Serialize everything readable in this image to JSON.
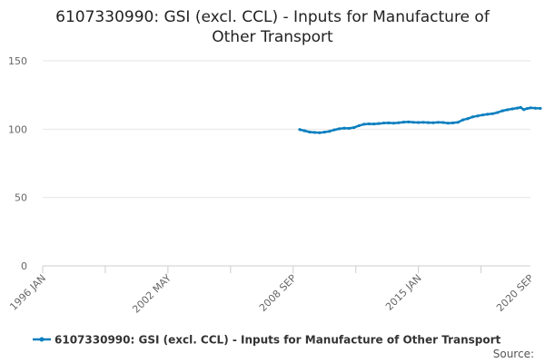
{
  "chart_data": {
    "type": "line",
    "title": "6107330990: GSI (excl. CCL) - Inputs for Manufacture of Other Transport",
    "xlabel": "",
    "ylabel": "",
    "x_tick_labels": [
      "1996 JAN",
      "2002 MAY",
      "2008 SEP",
      "2015 JAN",
      "2020 SEP"
    ],
    "ylim": [
      0,
      150
    ],
    "y_ticks": [
      0,
      50,
      100,
      150
    ],
    "grid": true,
    "legend_position": "bottom",
    "source_label": "Source:",
    "series": [
      {
        "name": "6107330990: GSI (excl. CCL) - Inputs for Manufacture of Other Transport",
        "color": "#0b7fbf",
        "points": [
          [
            "2009-01",
            99.7
          ],
          [
            "2009-04",
            98.8
          ],
          [
            "2009-07",
            97.9
          ],
          [
            "2009-10",
            97.6
          ],
          [
            "2010-01",
            97.4
          ],
          [
            "2010-04",
            97.8
          ],
          [
            "2010-07",
            98.4
          ],
          [
            "2010-10",
            99.5
          ],
          [
            "2011-01",
            100.3
          ],
          [
            "2011-04",
            100.7
          ],
          [
            "2011-07",
            100.6
          ],
          [
            "2011-10",
            101.2
          ],
          [
            "2012-01",
            102.6
          ],
          [
            "2012-04",
            103.6
          ],
          [
            "2012-07",
            103.9
          ],
          [
            "2012-10",
            103.8
          ],
          [
            "2013-01",
            104.1
          ],
          [
            "2013-04",
            104.5
          ],
          [
            "2013-07",
            104.6
          ],
          [
            "2013-10",
            104.4
          ],
          [
            "2014-01",
            104.7
          ],
          [
            "2014-04",
            105.1
          ],
          [
            "2014-07",
            105.3
          ],
          [
            "2014-10",
            105.0
          ],
          [
            "2015-01",
            104.9
          ],
          [
            "2015-04",
            105.0
          ],
          [
            "2015-07",
            104.8
          ],
          [
            "2015-10",
            104.7
          ],
          [
            "2016-01",
            105.0
          ],
          [
            "2016-04",
            104.9
          ],
          [
            "2016-07",
            104.4
          ],
          [
            "2016-10",
            104.6
          ],
          [
            "2017-01",
            105.0
          ],
          [
            "2017-04",
            106.8
          ],
          [
            "2017-07",
            107.7
          ],
          [
            "2017-10",
            109.0
          ],
          [
            "2018-01",
            109.7
          ],
          [
            "2018-04",
            110.4
          ],
          [
            "2018-07",
            110.9
          ],
          [
            "2018-10",
            111.3
          ],
          [
            "2019-01",
            112.2
          ],
          [
            "2019-04",
            113.4
          ],
          [
            "2019-07",
            114.2
          ],
          [
            "2019-10",
            114.8
          ],
          [
            "2020-01",
            115.4
          ],
          [
            "2020-03",
            115.9
          ],
          [
            "2020-05",
            114.3
          ],
          [
            "2020-07",
            115.1
          ],
          [
            "2020-09",
            115.6
          ],
          [
            "2020-12",
            115.3
          ],
          [
            "2021-03",
            115.2
          ]
        ]
      }
    ]
  }
}
